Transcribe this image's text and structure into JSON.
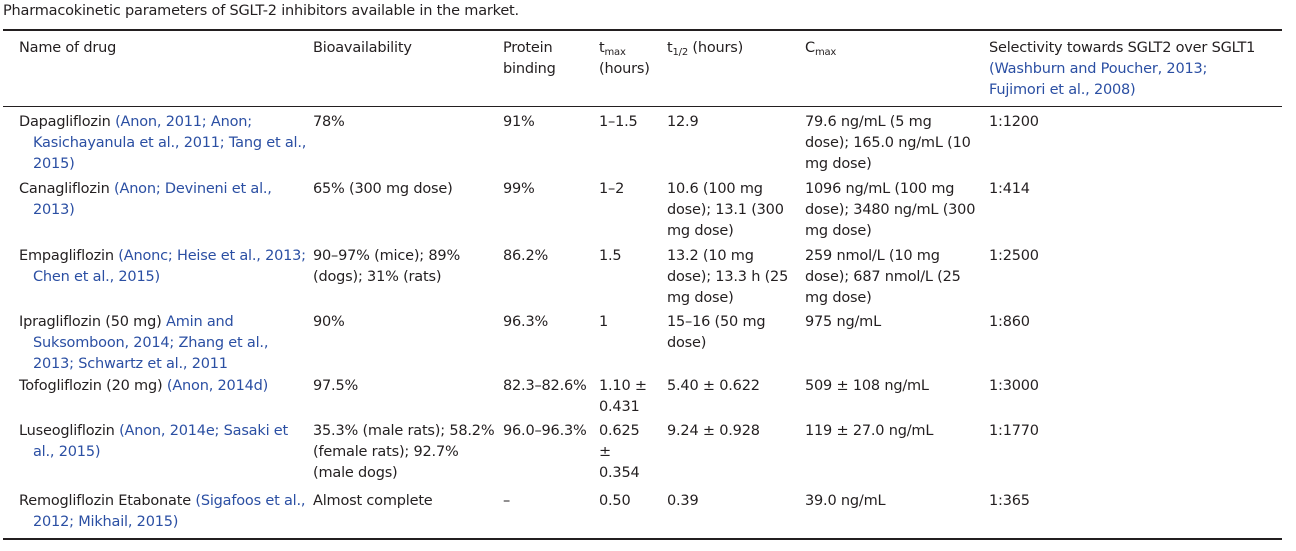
{
  "caption": "Pharmacokinetic parameters of SGLT-2 inhibitors available in the market.",
  "headers": {
    "name": "Name of drug",
    "bioavailability": "Bioavailability",
    "protein_binding": "Protein binding",
    "tmax_main": "t",
    "tmax_sub": "max",
    "tmax_unit": "(hours)",
    "thalf_main": "t",
    "thalf_sub": "1/2",
    "thalf_unit": " (hours)",
    "cmax_main": "C",
    "cmax_sub": "max",
    "selectivity": "Selectivity towards SGLT2 over SGLT1",
    "selectivity_cite": "(Washburn and Poucher, 2013; Fujimori et al., 2008)"
  },
  "rows": [
    {
      "drug": "Dapagliflozin",
      "refs": "(Anon, 2011; Anon; Kasichayanula et al., 2011; Tang et al., 2015)",
      "bioavailability": "78%",
      "protein_binding": "91%",
      "tmax": "1–1.5",
      "thalf": "12.9",
      "cmax": "79.6 ng/mL (5 mg dose); 165.0 ng/mL (10 mg dose)",
      "selectivity": "1:1200"
    },
    {
      "drug": "Canagliflozin",
      "refs": "(Anon; Devineni et al., 2013)",
      "bioavailability": "65% (300 mg dose)",
      "protein_binding": "99%",
      "tmax": "1–2",
      "thalf": "10.6 (100 mg dose); 13.1 (300 mg dose)",
      "cmax": "1096 ng/mL (100 mg dose); 3480 ng/mL (300 mg dose)",
      "selectivity": "1:414"
    },
    {
      "drug": "Empagliflozin",
      "refs": "(Anonc; Heise et al., 2013; Chen et al., 2015)",
      "bioavailability": "90–97% (mice); 89% (dogs); 31% (rats)",
      "protein_binding": "86.2%",
      "tmax": "1.5",
      "thalf": "13.2 (10 mg dose); 13.3 h (25 mg dose)",
      "cmax": "259 nmol/L (10 mg dose); 687 nmol/L (25 mg dose)",
      "selectivity": "1:2500"
    },
    {
      "drug": "Ipragliflozin (50 mg)",
      "refs": "Amin and Suksomboon, 2014; Zhang et al., 2013; Schwartz et al., 2011",
      "bioavailability": "90%",
      "protein_binding": "96.3%",
      "tmax": "1",
      "thalf": "15–16 (50 mg dose)",
      "cmax": "975 ng/mL",
      "selectivity": "1:860"
    },
    {
      "drug": "Tofogliflozin (20 mg)",
      "refs": "(Anon, 2014d)",
      "bioavailability": "97.5%",
      "protein_binding": "82.3–82.6%",
      "tmax": "1.10 ± 0.431",
      "thalf": "5.40 ± 0.622",
      "cmax": "509 ± 108 ng/mL",
      "selectivity": "1:3000"
    },
    {
      "drug": "Luseogliflozin",
      "refs": "(Anon, 2014e; Sasaki et al., 2015)",
      "bioavailability": "35.3% (male rats); 58.2% (female rats); 92.7% (male dogs)",
      "protein_binding": "96.0–96.3%",
      "tmax": "0.625 ± 0.354",
      "thalf": "9.24 ± 0.928",
      "cmax": "119 ± 27.0 ng/mL",
      "selectivity": "1:1770"
    },
    {
      "drug": "Remogliflozin Etabonate",
      "refs": "(Sigafoos et al., 2012; Mikhail, 2015)",
      "bioavailability": "Almost complete",
      "protein_binding": "–",
      "tmax": "0.50",
      "thalf": "0.39",
      "cmax": "39.0 ng/mL",
      "selectivity": "1:365"
    }
  ]
}
